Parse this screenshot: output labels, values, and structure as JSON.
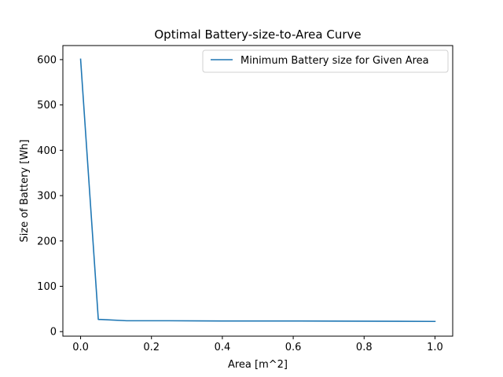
{
  "chart_data": {
    "type": "line",
    "title": "Optimal Battery-size-to-Area Curve",
    "xlabel": "Area [m^2]",
    "ylabel": "Size of Battery [Wh]",
    "xlim": [
      -0.05,
      1.05
    ],
    "ylim": [
      -10,
      631
    ],
    "xticks": [
      0.0,
      0.2,
      0.4,
      0.6,
      0.8,
      1.0
    ],
    "xtick_labels": [
      "0.0",
      "0.2",
      "0.4",
      "0.6",
      "0.8",
      "1.0"
    ],
    "yticks": [
      0,
      100,
      200,
      300,
      400,
      500,
      600
    ],
    "ytick_labels": [
      "0",
      "100",
      "200",
      "300",
      "400",
      "500",
      "600"
    ],
    "grid": false,
    "legend_position": "top-right",
    "series": [
      {
        "name": "Minimum Battery size for Given Area",
        "color": "#1f77b4",
        "x": [
          0.0,
          0.05,
          0.13,
          0.25,
          0.4,
          0.6,
          0.8,
          1.0
        ],
        "y": [
          601,
          27,
          24,
          24,
          23.5,
          23.5,
          23,
          22.5
        ]
      }
    ]
  }
}
